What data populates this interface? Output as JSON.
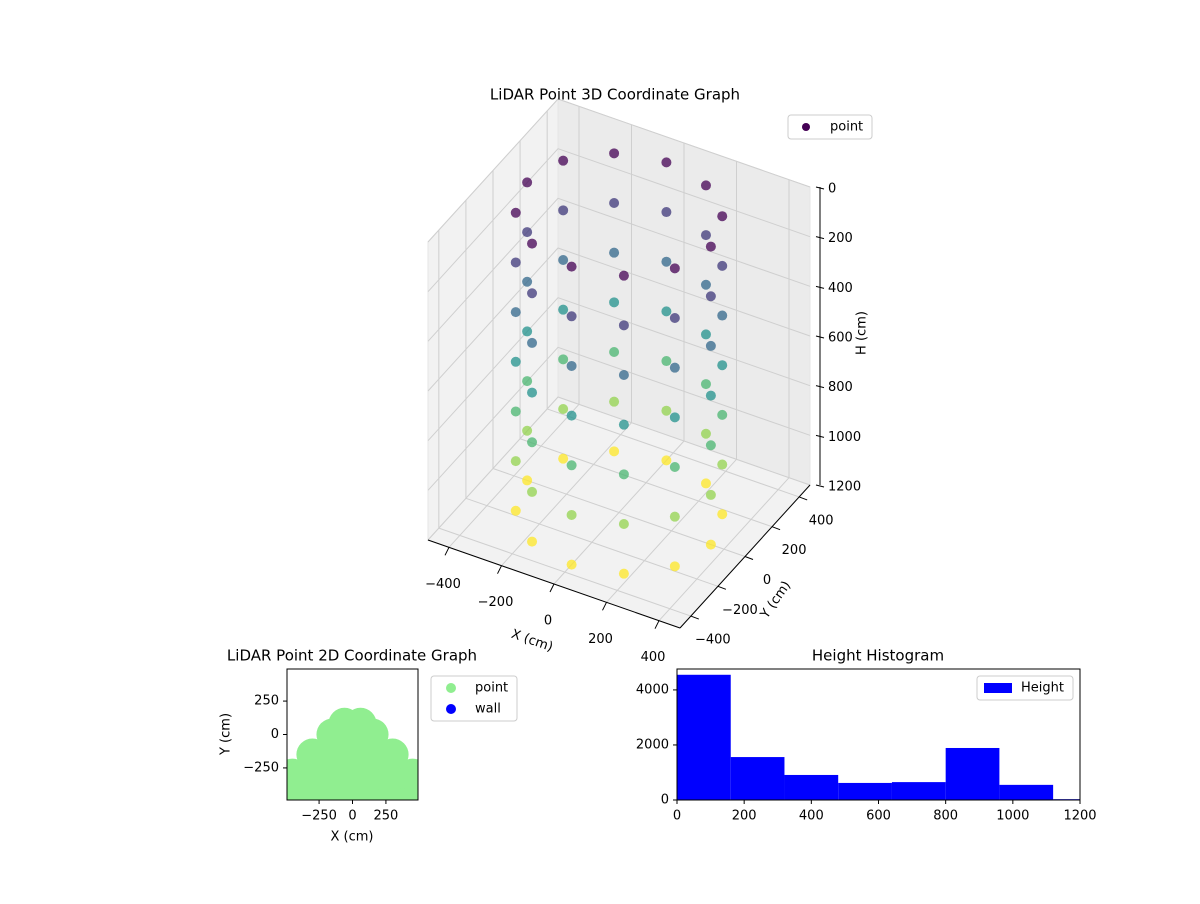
{
  "chart_data": [
    {
      "type": "scatter3d",
      "title": "LiDAR Point 3D Coordinate Graph",
      "xlabel": "X (cm)",
      "ylabel": "Y (cm)",
      "zlabel": "H (cm)",
      "xlim": [
        -480,
        480
      ],
      "ylim": [
        -480,
        480
      ],
      "zlim": [
        0,
        1200
      ],
      "z_inverted": true,
      "xticks": [
        {
          "value": -400,
          "label": "−400"
        },
        {
          "value": -200,
          "label": "−200"
        },
        0,
        200,
        400
      ],
      "yticks": [
        {
          "value": -400,
          "label": "−400"
        },
        {
          "value": -200,
          "label": "−200"
        },
        0,
        200,
        400
      ],
      "zticks": [
        0,
        200,
        400,
        600,
        800,
        1000,
        1200
      ],
      "grid": true,
      "legend": "upper right",
      "colormap": "viridis",
      "series": [
        {
          "name": "point",
          "color": "#440154",
          "x": [
            350,
            303,
            175,
            0,
            -175,
            -303,
            -350,
            -303,
            -175,
            0,
            175,
            303,
            350,
            303,
            175,
            0,
            -175,
            -303,
            -350,
            -303,
            -175,
            0,
            175,
            303,
            350,
            303,
            175,
            0,
            -175,
            -303,
            -350,
            -303,
            -175,
            0,
            175,
            303,
            350,
            303,
            175,
            0,
            -175,
            -303,
            -350,
            -303,
            -175,
            0,
            175,
            303,
            350,
            303,
            175,
            0,
            -175,
            -303,
            -350,
            -303,
            -175,
            0,
            175,
            303,
            350,
            303,
            175,
            0,
            -175,
            -303,
            -350,
            -303,
            -175,
            0,
            175,
            303,
            350,
            303,
            175,
            0,
            -175,
            -303,
            -350,
            -303,
            -175,
            0,
            175,
            303
          ],
          "y": [
            0,
            175,
            303,
            350,
            303,
            175,
            0,
            -175,
            -303,
            -350,
            -303,
            -175,
            0,
            175,
            303,
            350,
            303,
            175,
            0,
            -175,
            -303,
            -350,
            -303,
            -175,
            0,
            175,
            303,
            350,
            303,
            175,
            0,
            -175,
            -303,
            -350,
            -303,
            -175,
            0,
            175,
            303,
            350,
            303,
            175,
            0,
            -175,
            -303,
            -350,
            -303,
            -175,
            0,
            175,
            303,
            350,
            303,
            175,
            0,
            -175,
            -303,
            -350,
            -303,
            -175,
            0,
            175,
            303,
            350,
            303,
            175,
            0,
            -175,
            -303,
            -350,
            -303,
            -175,
            0,
            175,
            303,
            350,
            303,
            175,
            0,
            -175,
            -303,
            -350,
            -303,
            -175
          ],
          "z": [
            0,
            0,
            0,
            0,
            0,
            0,
            0,
            0,
            0,
            0,
            0,
            0,
            200,
            200,
            200,
            200,
            200,
            200,
            200,
            200,
            200,
            200,
            200,
            200,
            400,
            400,
            400,
            400,
            400,
            400,
            400,
            400,
            400,
            400,
            400,
            400,
            600,
            600,
            600,
            600,
            600,
            600,
            600,
            600,
            600,
            600,
            600,
            600,
            800,
            800,
            800,
            800,
            800,
            800,
            800,
            800,
            800,
            800,
            800,
            800,
            1000,
            1000,
            1000,
            1000,
            1000,
            1000,
            1000,
            1000,
            1000,
            1000,
            1000,
            1000,
            1200,
            1200,
            1200,
            1200,
            1200,
            1200,
            1200,
            1200,
            1200,
            1200,
            1200,
            1200
          ]
        }
      ]
    },
    {
      "type": "scatter",
      "title": "LiDAR Point 2D Coordinate Graph",
      "xlabel": "X (cm)",
      "ylabel": "Y (cm)",
      "xlim": [
        -490,
        490
      ],
      "ylim": [
        -490,
        490
      ],
      "xticks": [
        {
          "value": -250,
          "label": "−250"
        },
        0,
        250
      ],
      "yticks": [
        {
          "value": -250,
          "label": "−250"
        },
        0,
        250
      ],
      "legend": "outside right",
      "series": [
        {
          "name": "point",
          "color": "#90ee90",
          "x": [
            -450,
            -300,
            -150,
            0,
            150,
            300,
            450,
            -450,
            -300,
            -150,
            0,
            150,
            300,
            450,
            -300,
            -150,
            0,
            150,
            300,
            -150,
            0,
            150,
            -60,
            60
          ],
          "y": [
            -450,
            -450,
            -450,
            -450,
            -450,
            -450,
            -450,
            -300,
            -300,
            -300,
            -300,
            -300,
            -300,
            -300,
            -150,
            -150,
            -150,
            -150,
            -150,
            0,
            0,
            0,
            80,
            80
          ]
        },
        {
          "name": "wall",
          "color": "#0000ff",
          "x": [],
          "y": []
        }
      ]
    },
    {
      "type": "histogram",
      "title": "Height Histogram",
      "color": "#0000ff",
      "legend": "upper right",
      "series_name": "Height",
      "bins": [
        0,
        160,
        320,
        480,
        640,
        800,
        960,
        1120,
        1280
      ],
      "counts": [
        4550,
        1560,
        910,
        620,
        650,
        1890,
        550,
        30
      ],
      "xlim": [
        0,
        1200
      ],
      "ylim": [
        0,
        4760
      ],
      "xticks": [
        0,
        200,
        400,
        600,
        800,
        1000,
        1200
      ],
      "yticks": [
        0,
        2000,
        4000
      ]
    }
  ]
}
